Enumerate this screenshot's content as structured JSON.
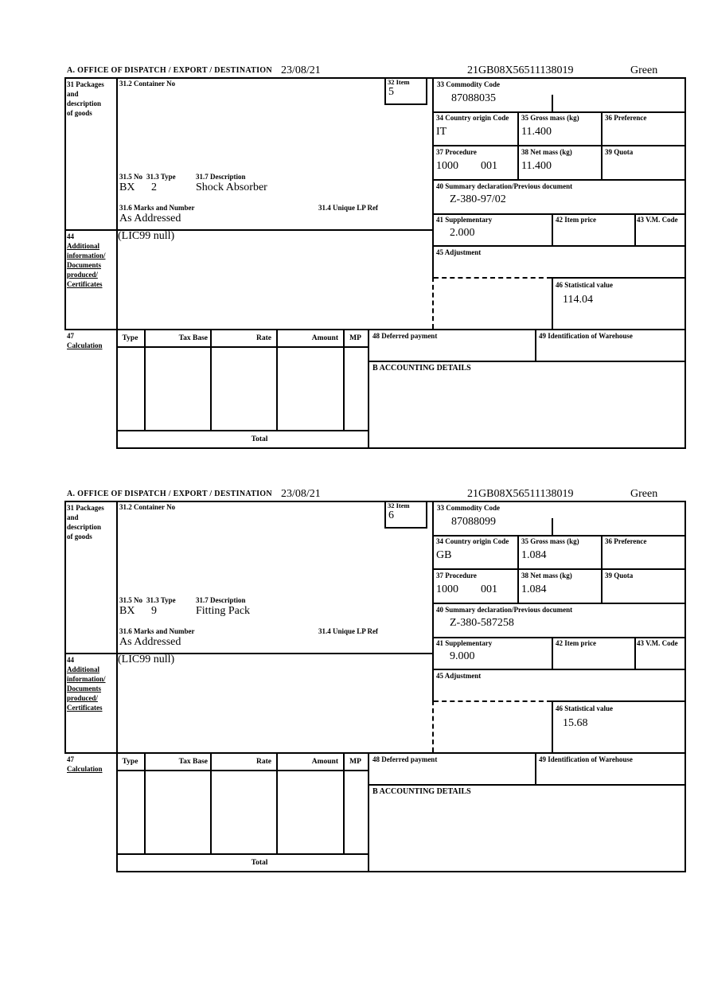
{
  "labels": {
    "office_header": "A. OFFICE OF DISPATCH / EXPORT / DESTINATION",
    "box31": [
      "31 Packages",
      "and",
      "description",
      "of goods"
    ],
    "box31_2": "31.2 Container No",
    "box32": "32 Item",
    "box31_5": "31.5 No",
    "box31_3": "31.3 Type",
    "box31_7": "31.7 Description",
    "box31_6": "31.6 Marks and Number",
    "box31_4": "31.4 Unique LP Ref",
    "box33": "33 Commodity Code",
    "box34": "34 Country origin Code",
    "box35": "35 Gross mass (kg)",
    "box36": "36 Preference",
    "box37": "37 Procedure",
    "box38": "38 Net mass (kg)",
    "box39": "39 Quota",
    "box40": "40 Summary declaration/Previous document",
    "box41": "41 Supplementary",
    "box42": "42 Item price",
    "box43": "43 V.M. Code",
    "box44": [
      "44",
      "Additional",
      "information/",
      "Documents",
      "produced/",
      "Certificates"
    ],
    "box45": "45 Adjustment",
    "box46": "46 Statistical value",
    "box47": [
      "47",
      "Calculation"
    ],
    "box48": "48 Deferred payment",
    "box49": "49 Identification of Warehouse",
    "accounting": "B ACCOUNTING DETAILS",
    "calc_table": {
      "type": "Type",
      "tax_base": "Tax Base",
      "rate": "Rate",
      "amount": "Amount",
      "mp": "MP",
      "total": "Total"
    }
  },
  "items": [
    {
      "date": "23/08/21",
      "mrn": "21GB08X56511138019",
      "routing": "Green",
      "item_no": "5",
      "container_no": "",
      "package_code": "BX",
      "package_type": "2",
      "description": "Shock Absorber",
      "marks_and_number": "As Addressed",
      "unique_lp_ref": "",
      "additional_info": "(LIC99 null)",
      "commodity_code": "87088035",
      "country_origin_code": "IT",
      "gross_mass_kg": "11.400",
      "preference": "",
      "procedure": "1000",
      "procedure_extra": "001",
      "net_mass_kg": "11.400",
      "quota": "",
      "summary_declaration": "Z-380-97/02",
      "supplementary": "2.000",
      "item_price": "",
      "vm_code": "",
      "adjustment": "",
      "statistical_value": "114.04",
      "deferred_payment": "",
      "warehouse_id": "",
      "accounting_details": "",
      "total": ""
    },
    {
      "date": "23/08/21",
      "mrn": "21GB08X56511138019",
      "routing": "Green",
      "item_no": "6",
      "container_no": "",
      "package_code": "BX",
      "package_type": "9",
      "description": "Fitting Pack",
      "marks_and_number": "As Addressed",
      "unique_lp_ref": "",
      "additional_info": "(LIC99 null)",
      "commodity_code": "87088099",
      "country_origin_code": "GB",
      "gross_mass_kg": "1.084",
      "preference": "",
      "procedure": "1000",
      "procedure_extra": "001",
      "net_mass_kg": "1.084",
      "quota": "",
      "summary_declaration": "Z-380-587258",
      "supplementary": "9.000",
      "item_price": "",
      "vm_code": "",
      "adjustment": "",
      "statistical_value": "15.68",
      "deferred_payment": "",
      "warehouse_id": "",
      "accounting_details": "",
      "total": ""
    }
  ]
}
